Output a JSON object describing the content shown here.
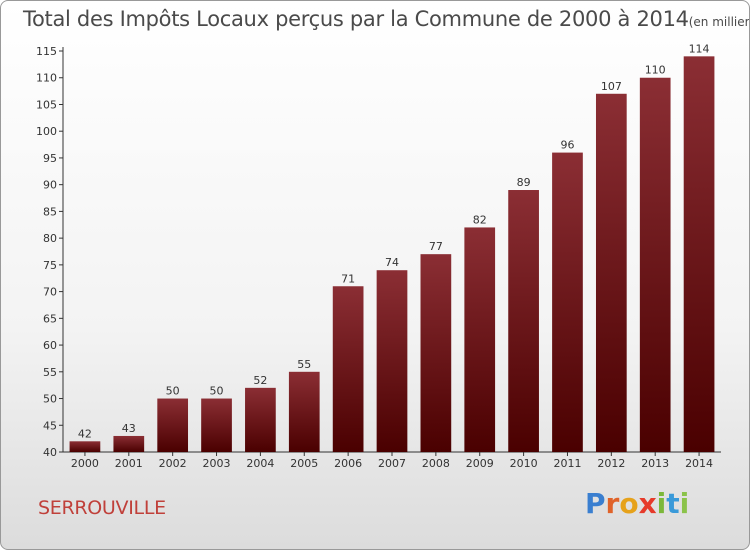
{
  "chart_data": {
    "type": "bar",
    "title": "Total des Impôts Locaux perçus par la Commune de 2000 à 2014",
    "unit_note": "(en milliers d'€)",
    "categories": [
      "2000",
      "2001",
      "2002",
      "2003",
      "2004",
      "2005",
      "2006",
      "2007",
      "2008",
      "2009",
      "2010",
      "2011",
      "2012",
      "2013",
      "2014"
    ],
    "values": [
      42,
      43,
      50,
      50,
      52,
      55,
      71,
      74,
      77,
      82,
      89,
      96,
      107,
      110,
      114
    ],
    "ylim": [
      40,
      115
    ],
    "yticks": [
      40,
      45,
      50,
      55,
      60,
      65,
      70,
      75,
      80,
      85,
      90,
      95,
      100,
      105,
      110,
      115
    ],
    "xlabel": "",
    "ylabel": "",
    "grid": false,
    "bar_color_top": "#8b2e34",
    "bar_color_bottom": "#4a0000"
  },
  "commune": "SERROUVILLE",
  "logo": {
    "letters": [
      "P",
      "r",
      "o",
      "x",
      "i",
      "t",
      "i"
    ],
    "colors": [
      "#3a7fd0",
      "#e0632a",
      "#e6a21b",
      "#e63a2a",
      "#7cb83a",
      "#3a9ad9",
      "#8bc34a"
    ]
  }
}
